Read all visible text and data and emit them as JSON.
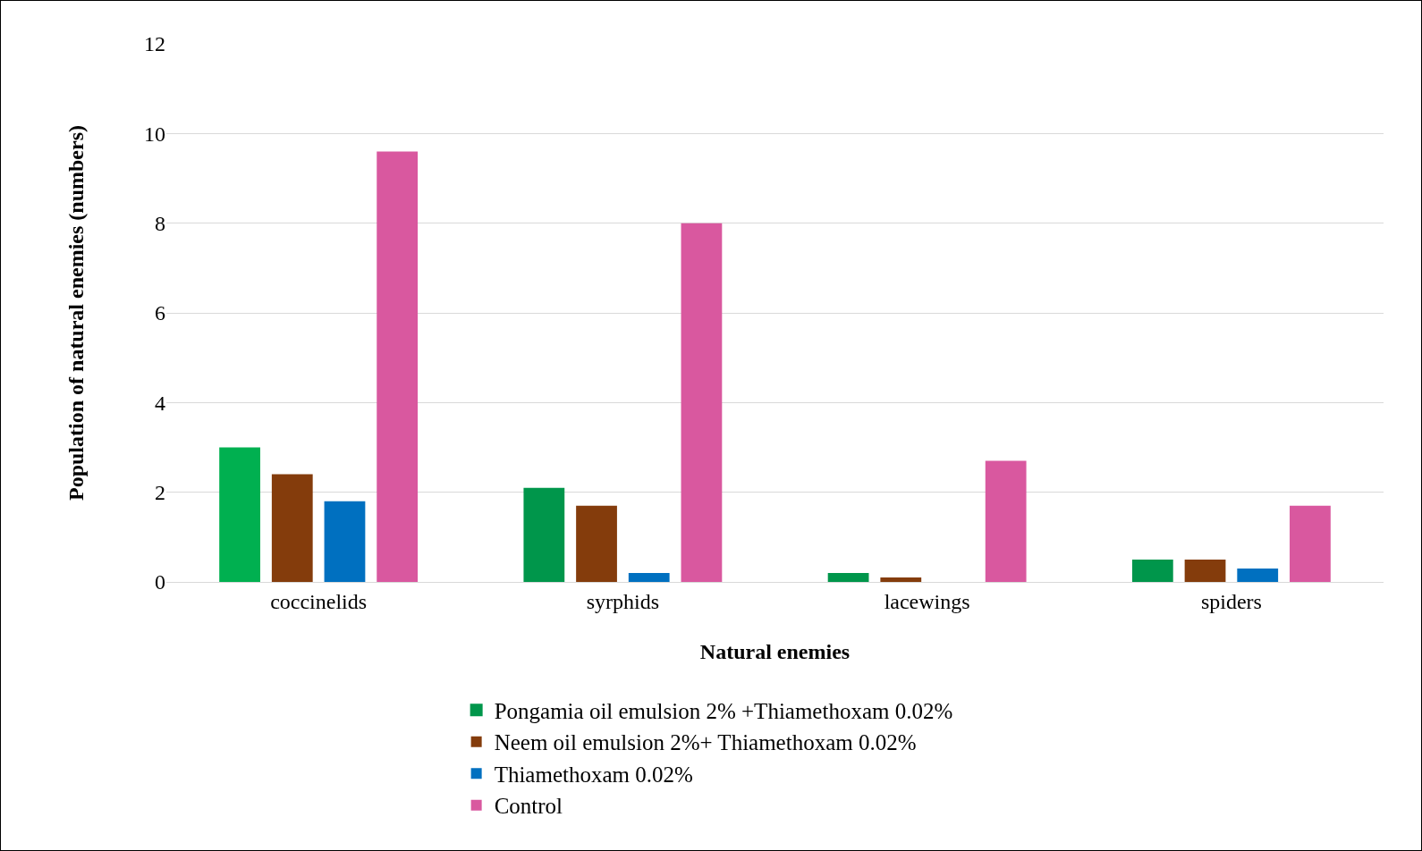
{
  "chart_data": {
    "type": "bar",
    "xlabel": "Natural enemies",
    "ylabel": "Population of natural enemies (numbers)",
    "categories": [
      "coccinelids",
      "syrphids",
      "lacewings",
      "spiders"
    ],
    "series": [
      {
        "name": "Pongamia oil emulsion 2% +Thiamethoxam 0.02%",
        "color": "#00964b",
        "colors": [
          "#00b050",
          "#00964b",
          "#00964b",
          "#00964b"
        ],
        "values": [
          3.0,
          2.1,
          0.2,
          0.5
        ]
      },
      {
        "name": "Neem oil emulsion 2%+ Thiamethoxam 0.02%",
        "color": "#843c0c",
        "values": [
          2.4,
          1.7,
          0.1,
          0.5
        ]
      },
      {
        "name": "Thiamethoxam 0.02%",
        "color": "#0070c0",
        "values": [
          1.8,
          0.2,
          0,
          0.3
        ]
      },
      {
        "name": "Control",
        "color": "#d9589f",
        "values": [
          9.6,
          8.0,
          2.7,
          1.7
        ]
      }
    ],
    "ylim": [
      0,
      12
    ],
    "yticks": [
      0,
      2,
      4,
      6,
      8,
      10,
      12
    ],
    "grid": "y",
    "legend": "bottom"
  }
}
